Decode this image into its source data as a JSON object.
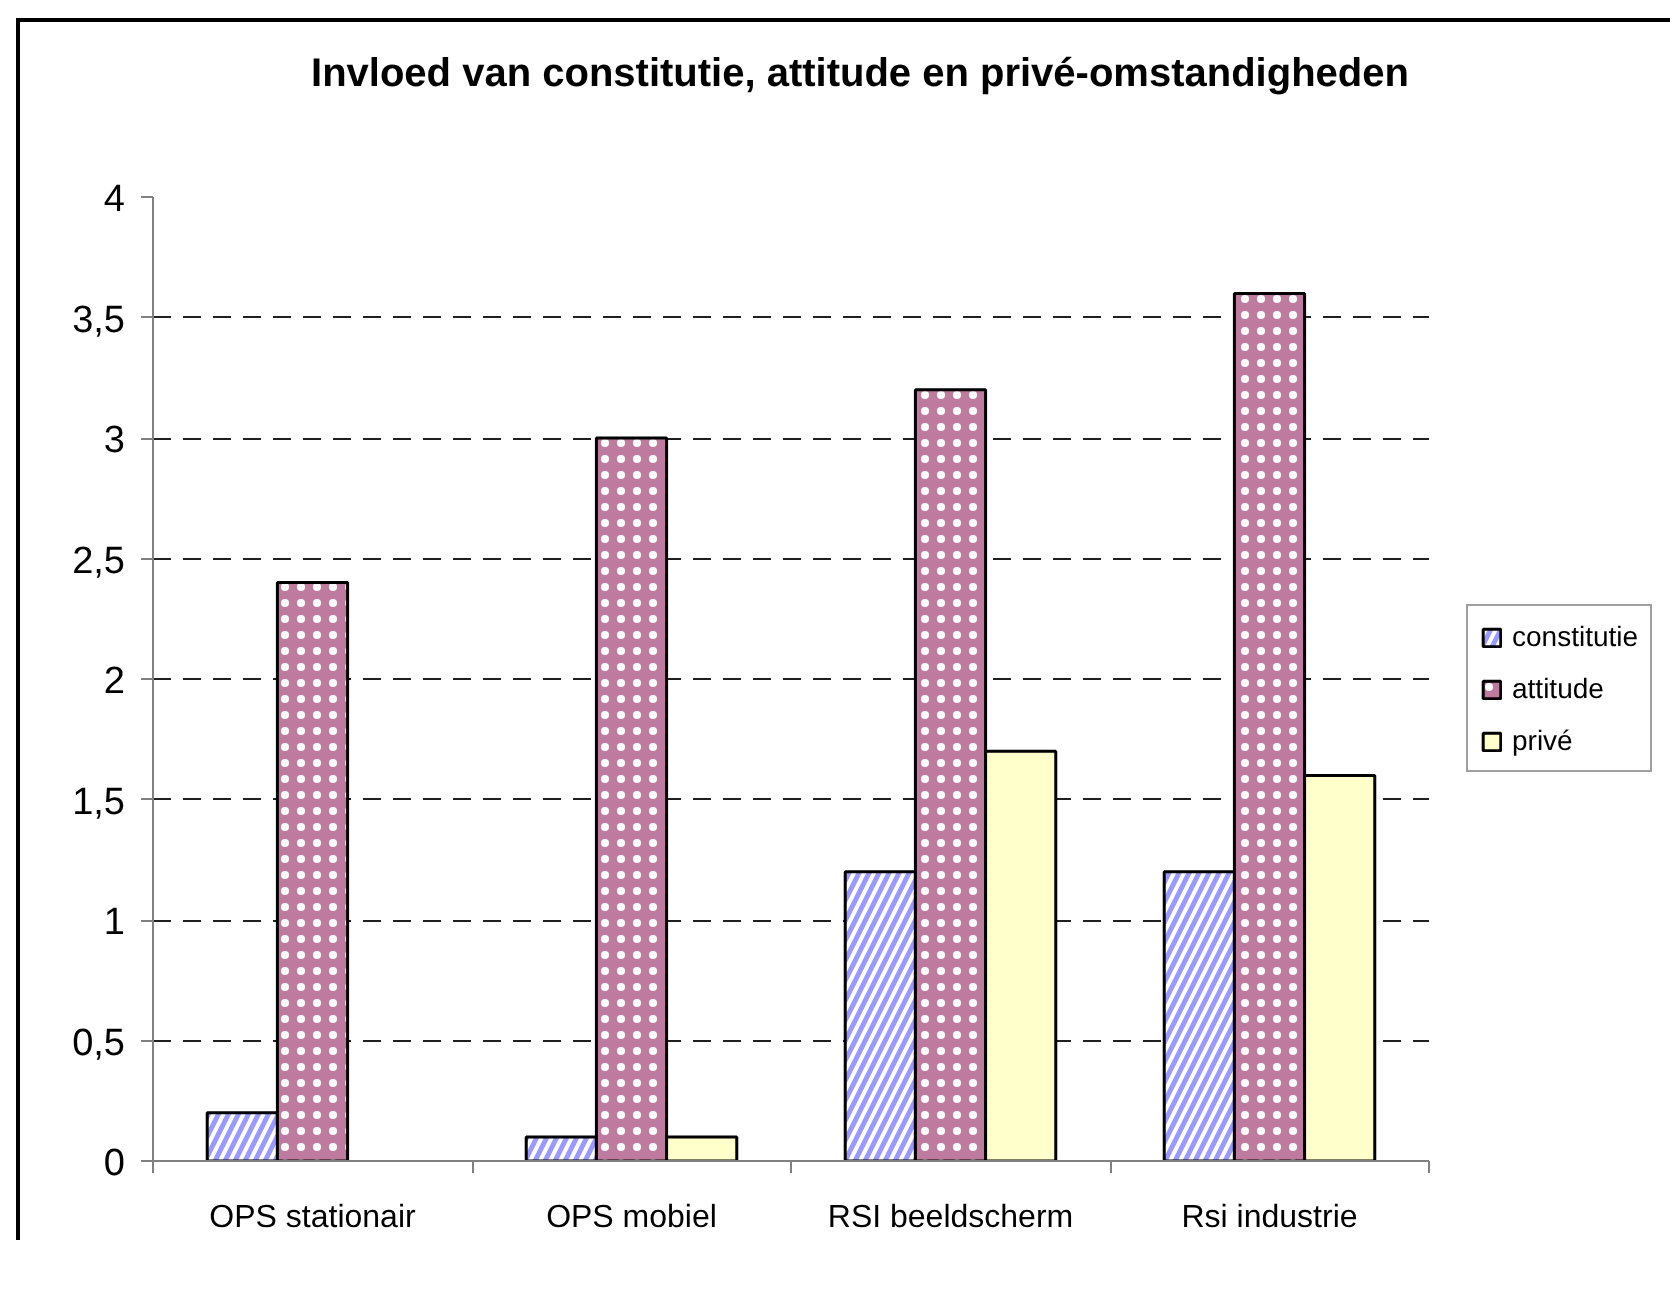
{
  "chart_data": {
    "type": "bar",
    "title": "Invloed van constitutie, attitude en privé-omstandigheden",
    "categories": [
      "OPS stationair",
      "OPS mobiel",
      "RSI beeldscherm",
      "Rsi industrie"
    ],
    "series": [
      {
        "name": "constitutie",
        "color": "#9999ff",
        "values": [
          0.2,
          0.1,
          1.2,
          1.2
        ]
      },
      {
        "name": "attitude",
        "color": "#bf7a9f",
        "values": [
          2.4,
          3.0,
          3.2,
          3.6
        ]
      },
      {
        "name": "privé",
        "color": "#ffffcc",
        "values": [
          null,
          0.1,
          1.7,
          1.6
        ]
      }
    ],
    "ylim": [
      0,
      4
    ],
    "yticks": [
      0,
      {
        "value": 0.5,
        "label": "0,5"
      },
      1,
      {
        "value": 1.5,
        "label": "1,5"
      },
      2,
      {
        "value": 2.5,
        "label": "2,5"
      },
      3,
      {
        "value": 3.5,
        "label": "3,5"
      },
      4
    ],
    "grid": "y",
    "legend": "right"
  }
}
